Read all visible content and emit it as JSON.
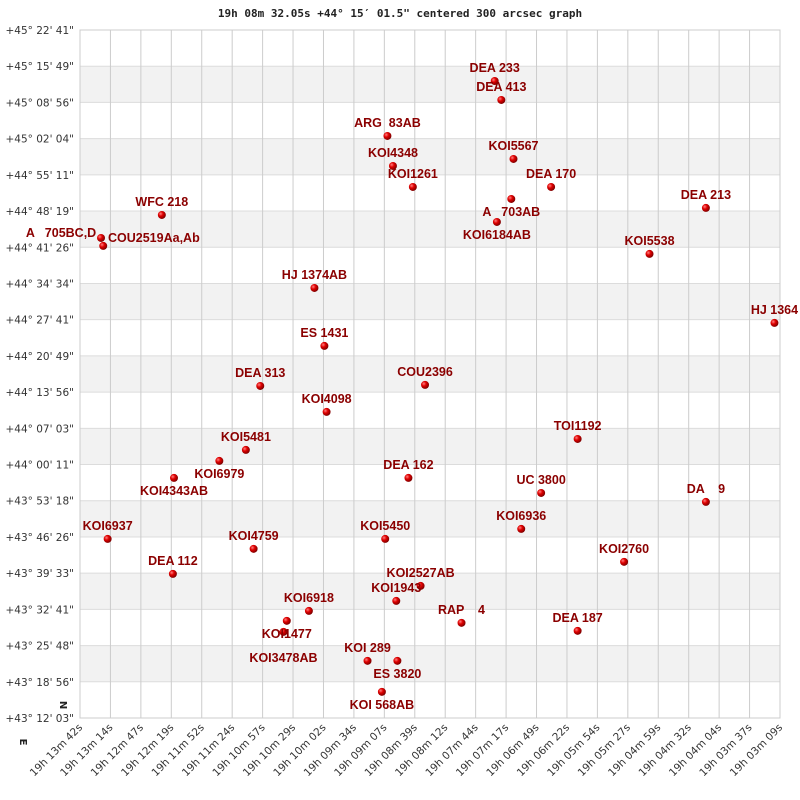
{
  "chart_data": {
    "type": "scatter",
    "title": "19h 08m 32.05s +44° 15′ 01.5\" centered 300 arcsec graph",
    "x_ticks": [
      "19h 13m 42s",
      "19h 13m 14s",
      "19h 12m 47s",
      "19h 12m 19s",
      "19h 11m 52s",
      "19h 11m 24s",
      "19h 10m 57s",
      "19h 10m 29s",
      "19h 10m 02s",
      "19h 09m 34s",
      "19h 09m 07s",
      "19h 08m 39s",
      "19h 08m 12s",
      "19h 07m 44s",
      "19h 07m 17s",
      "19h 06m 49s",
      "19h 06m 22s",
      "19h 05m 54s",
      "19h 05m 27s",
      "19h 04m 59s",
      "19h 04m 32s",
      "19h 04m 04s",
      "19h 03m 37s",
      "19h 03m 09s"
    ],
    "y_ticks": [
      "+45° 22' 41\"",
      "+45° 15' 49\"",
      "+45° 08' 56\"",
      "+45° 02' 04\"",
      "+44° 55' 11\"",
      "+44° 48' 19\"",
      "+44° 41' 26\"",
      "+44° 34' 34\"",
      "+44° 27' 41\"",
      "+44° 20' 49\"",
      "+44° 13' 56\"",
      "+44° 07' 03\"",
      "+44° 00' 11\"",
      "+43° 53' 18\"",
      "+43° 46' 26\"",
      "+43° 39' 33\"",
      "+43° 32' 41\"",
      "+43° 25' 48\"",
      "+43° 18' 56\"",
      "+43° 12' 03\""
    ],
    "xlim": [
      "19:13:42",
      "19:03:09"
    ],
    "ylim": [
      "+43:12:03",
      "+45:22:41"
    ],
    "x_reversed": true,
    "grid": true,
    "compass": {
      "north": "N",
      "east": "E"
    },
    "marker_color": "#dd0000",
    "label_color": "#8b0000",
    "points": [
      {
        "label": "DEA 233",
        "ra": "19:07:27",
        "dec": "+45:13:00"
      },
      {
        "label": "DEA 413",
        "ra": "19:07:21",
        "dec": "+45:09:24"
      },
      {
        "label": "ARG  83AB",
        "ra": "19:09:04",
        "dec": "+45:02:34"
      },
      {
        "label": "KOI4348",
        "ra": "19:08:59",
        "dec": "+44:56:52"
      },
      {
        "label": "KOI5567",
        "ra": "19:07:10",
        "dec": "+44:58:12"
      },
      {
        "label": "DEA 170",
        "ra": "19:06:36",
        "dec": "+44:52:53"
      },
      {
        "label": "KOI1261",
        "ra": "19:08:41",
        "dec": "+44:52:53"
      },
      {
        "label": "A   703AB",
        "ra": "19:07:12",
        "dec": "+44:50:36"
      },
      {
        "label": "KOI6184AB",
        "ra": "19:07:25",
        "dec": "+44:46:14"
      },
      {
        "label": "DEA 213",
        "ra": "19:04:16",
        "dec": "+44:48:54"
      },
      {
        "label": "WFC 218",
        "ra": "19:12:28",
        "dec": "+44:47:34"
      },
      {
        "label": "COU2519Aa,Ab",
        "ra": "19:13:23",
        "dec": "+44:43:12"
      },
      {
        "label": "A   705BC,D",
        "ra": "19:13:21",
        "dec": "+44:41:41"
      },
      {
        "label": "KOI5538",
        "ra": "19:05:07",
        "dec": "+44:40:10"
      },
      {
        "label": "HJ 1374AB",
        "ra": "19:10:10",
        "dec": "+44:33:42"
      },
      {
        "label": "HJ 1364",
        "ra": "19:03:14",
        "dec": "+44:27:04"
      },
      {
        "label": "ES 1431",
        "ra": "19:10:01",
        "dec": "+44:22:42"
      },
      {
        "label": "DEA 313",
        "ra": "19:10:59",
        "dec": "+44:15:06"
      },
      {
        "label": "COU2396",
        "ra": "19:08:30",
        "dec": "+44:15:18"
      },
      {
        "label": "KOI4098",
        "ra": "19:09:59",
        "dec": "+44:10:10"
      },
      {
        "label": "TOI1192",
        "ra": "19:06:12",
        "dec": "+44:05:02"
      },
      {
        "label": "KOI5481",
        "ra": "19:11:12",
        "dec": "+44:02:57"
      },
      {
        "label": "KOI6979",
        "ra": "19:11:36",
        "dec": "+44:00:52"
      },
      {
        "label": "DEA 162",
        "ra": "19:08:45",
        "dec": "+43:57:38"
      },
      {
        "label": "KOI4343AB",
        "ra": "19:12:17",
        "dec": "+43:57:38"
      },
      {
        "label": "UC 3800",
        "ra": "19:06:45",
        "dec": "+43:54:47"
      },
      {
        "label": "DA    9",
        "ra": "19:04:16",
        "dec": "+43:53:05"
      },
      {
        "label": "KOI6936",
        "ra": "19:07:03",
        "dec": "+43:47:57"
      },
      {
        "label": "KOI6937",
        "ra": "19:13:17",
        "dec": "+43:46:03"
      },
      {
        "label": "KOI5450",
        "ra": "19:09:06",
        "dec": "+43:46:03"
      },
      {
        "label": "KOI4759",
        "ra": "19:11:05",
        "dec": "+43:44:10"
      },
      {
        "label": "KOI2760",
        "ra": "19:05:30",
        "dec": "+43:41:42"
      },
      {
        "label": "DEA 112",
        "ra": "19:12:18",
        "dec": "+43:39:25"
      },
      {
        "label": "KOI2527AB",
        "ra": "19:08:34",
        "dec": "+43:37:08"
      },
      {
        "label": "KOI1943",
        "ra": "19:08:56",
        "dec": "+43:34:17"
      },
      {
        "label": "RAP    4",
        "ra": "19:07:57",
        "dec": "+43:30:07"
      },
      {
        "label": "KOI6918",
        "ra": "19:10:15",
        "dec": "+43:32:23"
      },
      {
        "label": "KOI1477",
        "ra": "19:10:35",
        "dec": "+43:30:30"
      },
      {
        "label": "KOI3478AB",
        "ra": "19:10:38",
        "dec": "+43:28:24"
      },
      {
        "label": "DEA 187",
        "ra": "19:06:12",
        "dec": "+43:28:36"
      },
      {
        "label": "KOI 289",
        "ra": "19:09:22",
        "dec": "+43:22:54"
      },
      {
        "label": "ES 3820",
        "ra": "19:08:55",
        "dec": "+43:22:54"
      },
      {
        "label": "KOI 568AB",
        "ra": "19:09:09",
        "dec": "+43:17:01"
      }
    ]
  }
}
